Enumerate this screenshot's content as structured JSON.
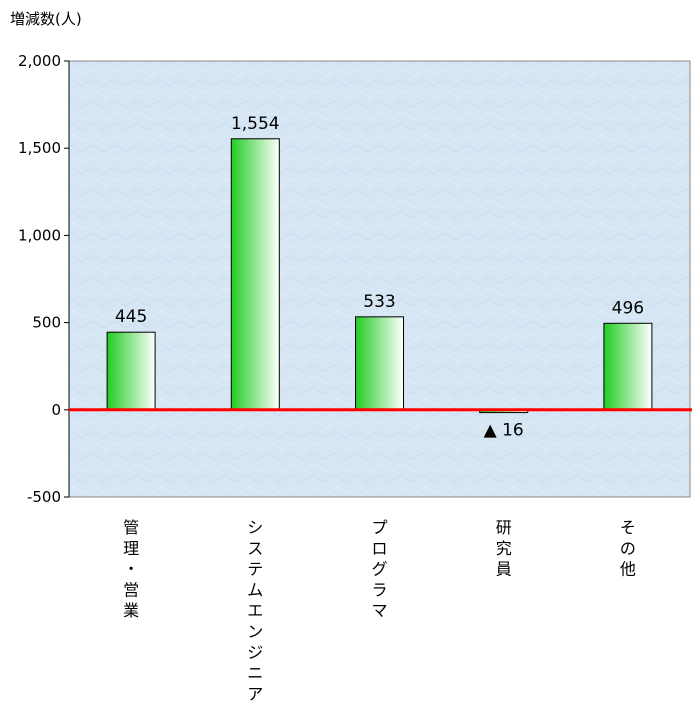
{
  "chart_data": {
    "type": "bar",
    "ylabel": "増減数(人)",
    "ylim": [
      -500,
      2000
    ],
    "yticks": [
      2000,
      1500,
      1000,
      500,
      0,
      -500
    ],
    "ytick_labels": [
      "2,000",
      "1,500",
      "1,000",
      "500",
      "0",
      "-500"
    ],
    "categories": [
      "管理・営業",
      "システムエンジニア",
      "プログラマ",
      "研究員",
      "その他"
    ],
    "values": [
      445,
      1554,
      533,
      -16,
      496
    ],
    "data_labels": [
      "445",
      "1,554",
      "533",
      "▲ 16",
      "496"
    ],
    "grid": false,
    "legend": "none",
    "colors": {
      "plot_bg": "#d6e6f4",
      "bar_dark": "#22cc22",
      "bar_light": "#ffffff",
      "zero_line": "#ff0000"
    }
  }
}
